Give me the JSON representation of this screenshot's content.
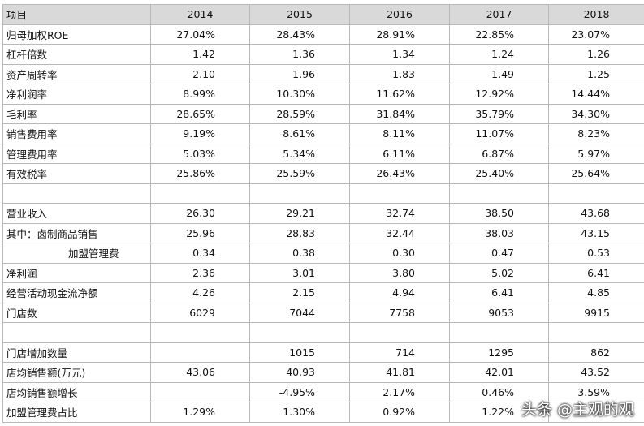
{
  "table": {
    "header": [
      "项目",
      "2014",
      "2015",
      "2016",
      "2017",
      "2018"
    ],
    "rows": [
      [
        "归母加权ROE",
        "27.04%",
        "28.43%",
        "28.91%",
        "22.85%",
        "23.07%"
      ],
      [
        "杠杆倍数",
        "1.42",
        "1.36",
        "1.34",
        "1.24",
        "1.26"
      ],
      [
        "资产周转率",
        "2.10",
        "1.96",
        "1.83",
        "1.49",
        "1.25"
      ],
      [
        "净利润率",
        "8.99%",
        "10.30%",
        "11.62%",
        "12.92%",
        "14.44%"
      ],
      [
        "毛利率",
        "28.65%",
        "28.59%",
        "31.84%",
        "35.79%",
        "34.30%"
      ],
      [
        "销售费用率",
        "9.19%",
        "8.61%",
        "8.11%",
        "11.07%",
        "8.23%"
      ],
      [
        "管理费用率",
        "5.03%",
        "5.34%",
        "6.11%",
        "6.87%",
        "5.97%"
      ],
      [
        "有效税率",
        "25.86%",
        "25.59%",
        "26.43%",
        "25.40%",
        "25.64%"
      ],
      [
        null,
        null,
        null,
        null,
        null,
        null
      ],
      [
        "营业收入",
        "26.30",
        "29.21",
        "32.74",
        "38.50",
        "43.68"
      ],
      [
        "其中：卤制商品销售",
        "25.96",
        "28.83",
        "32.44",
        "38.03",
        "43.15"
      ],
      [
        "加盟管理费",
        "0.34",
        "0.38",
        "0.30",
        "0.47",
        "0.53"
      ],
      [
        "净利润",
        "2.36",
        "3.01",
        "3.80",
        "5.02",
        "6.41"
      ],
      [
        "经营活动现金流净额",
        "4.26",
        "2.15",
        "4.94",
        "6.41",
        "4.85"
      ],
      [
        "门店数",
        "6029",
        "7044",
        "7758",
        "9053",
        "9915"
      ],
      [
        null,
        null,
        null,
        null,
        null,
        null
      ],
      [
        "门店增加数量",
        null,
        "1015",
        "714",
        "1295",
        "862"
      ],
      [
        "店均销售额(万元)",
        "43.06",
        "40.93",
        "41.81",
        "42.01",
        "43.52"
      ],
      [
        "店均销售额增长",
        null,
        "-4.95%",
        "2.17%",
        "0.46%",
        "3.59%"
      ],
      [
        "加盟管理费占比",
        "1.29%",
        "1.30%",
        "0.92%",
        "1.22%",
        null
      ]
    ]
  },
  "watermark": "头条 @主观的观"
}
